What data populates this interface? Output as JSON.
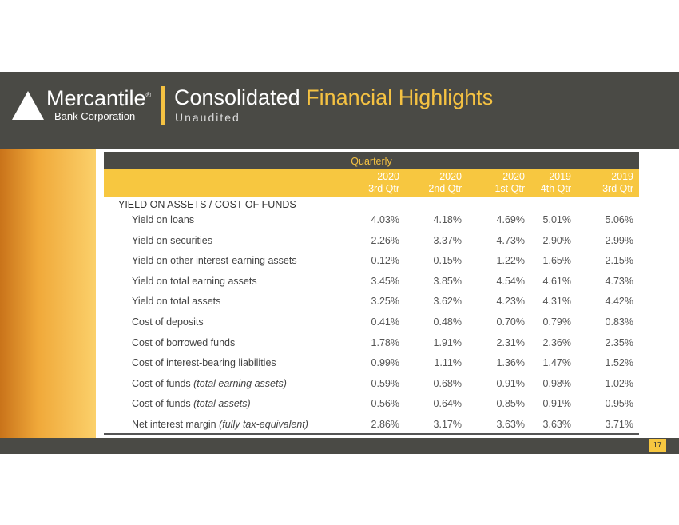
{
  "header": {
    "logo_name": "Mercantile",
    "logo_mark": "®",
    "logo_sub": "Bank Corporation",
    "title_part1": "Consolidated",
    "title_part2": "Financial Highlights",
    "subtitle": "Unaudited"
  },
  "table": {
    "group_header": "Quarterly",
    "columns": [
      {
        "year": "2020",
        "quarter": "3rd Qtr"
      },
      {
        "year": "2020",
        "quarter": "2nd Qtr"
      },
      {
        "year": "2020",
        "quarter": "1st Qtr"
      },
      {
        "year": "2019",
        "quarter": "4th Qtr"
      },
      {
        "year": "2019",
        "quarter": "3rd Qtr"
      }
    ],
    "section": "YIELD ON ASSETS / COST OF FUNDS",
    "rows": [
      {
        "label": "Yield on loans",
        "values": [
          "4.03%",
          "4.18%",
          "4.69%",
          "5.01%",
          "5.06%"
        ]
      },
      {
        "label": "Yield on securities",
        "values": [
          "2.26%",
          "3.37%",
          "4.73%",
          "2.90%",
          "2.99%"
        ]
      },
      {
        "label": "Yield on other interest-earning assets",
        "values": [
          "0.12%",
          "0.15%",
          "1.22%",
          "1.65%",
          "2.15%"
        ]
      },
      {
        "label": "Yield on total earning assets",
        "values": [
          "3.45%",
          "3.85%",
          "4.54%",
          "4.61%",
          "4.73%"
        ]
      },
      {
        "label": "Yield on total assets",
        "values": [
          "3.25%",
          "3.62%",
          "4.23%",
          "4.31%",
          "4.42%"
        ]
      },
      {
        "label": "Cost of deposits",
        "values": [
          "0.41%",
          "0.48%",
          "0.70%",
          "0.79%",
          "0.83%"
        ]
      },
      {
        "label": "Cost of borrowed funds",
        "values": [
          "1.78%",
          "1.91%",
          "2.31%",
          "2.36%",
          "2.35%"
        ]
      },
      {
        "label": "Cost of interest-bearing liabilities",
        "values": [
          "0.99%",
          "1.11%",
          "1.36%",
          "1.47%",
          "1.52%"
        ]
      },
      {
        "label": "Cost of funds",
        "note": "(total earning assets)",
        "values": [
          "0.59%",
          "0.68%",
          "0.91%",
          "0.98%",
          "1.02%"
        ]
      },
      {
        "label": "Cost of funds",
        "note": "(total assets)",
        "values": [
          "0.56%",
          "0.64%",
          "0.85%",
          "0.91%",
          "0.95%"
        ]
      },
      {
        "label": "Net interest margin",
        "note": "(fully tax-equivalent)",
        "values": [
          "2.86%",
          "3.17%",
          "3.63%",
          "3.63%",
          "3.71%"
        ]
      }
    ]
  },
  "footer": {
    "page_number": "17"
  }
}
